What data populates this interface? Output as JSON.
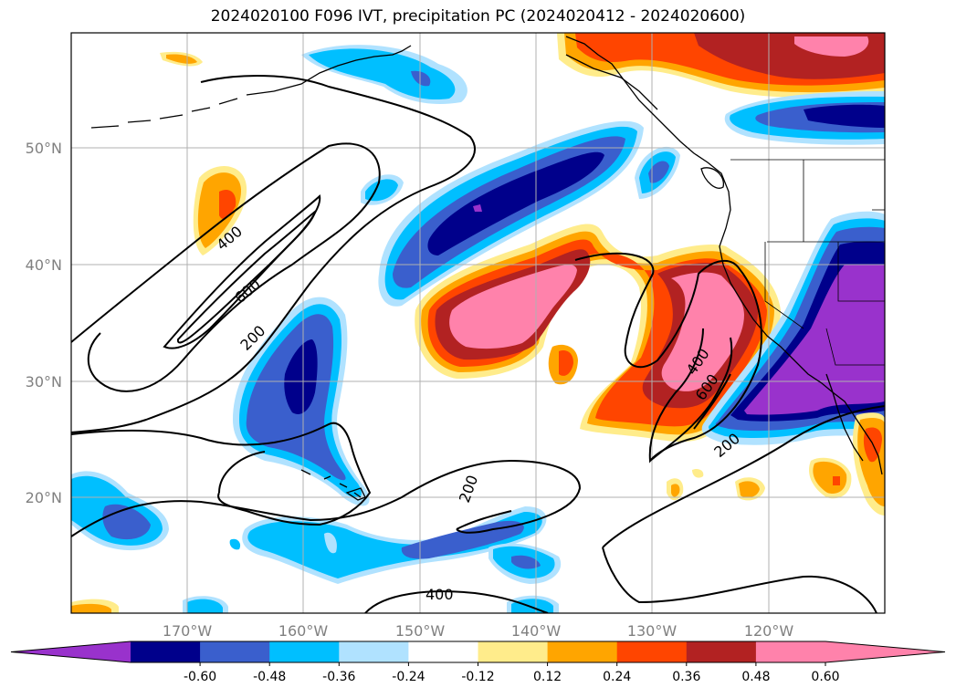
{
  "title": "2024020100 F096 IVT, precipitation PC (2024020412 - 2024020600)",
  "lat_labels": [
    "50°N",
    "40°N",
    "30°N",
    "20°N"
  ],
  "lon_labels": [
    "170°W",
    "160°W",
    "150°W",
    "140°W",
    "130°W",
    "120°W"
  ],
  "contour_labels": [
    "400",
    "600",
    "200",
    "200",
    "400",
    "200",
    "400",
    "600"
  ],
  "colorbar": {
    "ticks": [
      "-0.60",
      "-0.48",
      "-0.36",
      "-0.24",
      "-0.12",
      "0.12",
      "0.24",
      "0.36",
      "0.48",
      "0.60"
    ],
    "colors": [
      "#9932cc",
      "#00008b",
      "#3a5fcd",
      "#00bfff",
      "#b0e2ff",
      "#ffffff",
      "#ffec8b",
      "#ffa500",
      "#ff4500",
      "#b22222",
      "#ff82ab",
      "#ff82ab"
    ]
  },
  "colors": {
    "purple": "#9932cc",
    "navy": "#00008b",
    "blue": "#3a5fcd",
    "sky": "#00bfff",
    "light": "#b0e2ff",
    "yellow": "#ffec8b",
    "orange": "#ffa500",
    "red": "#ff4500",
    "darkred": "#b22222",
    "pink": "#ff82ab"
  }
}
